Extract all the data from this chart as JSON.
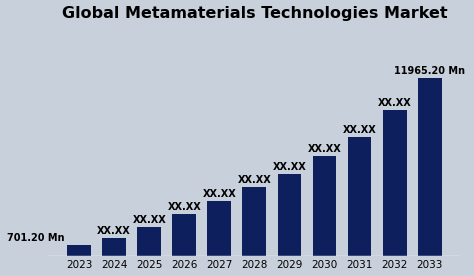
{
  "title": "Global Metamaterials Technologies Market",
  "categories": [
    "2023",
    "2024",
    "2025",
    "2026",
    "2027",
    "2028",
    "2029",
    "2030",
    "2031",
    "2032",
    "2033"
  ],
  "values": [
    701.2,
    1200,
    1900,
    2800,
    3700,
    4600,
    5500,
    6700,
    8000,
    9800,
    11965.2
  ],
  "bar_color": "#0d1f5c",
  "background_color": "#c8d0dc",
  "title_color": "#000000",
  "label_first": "701.20 Mn",
  "label_last": "11965.20 Mn",
  "label_middle": "XX.XX",
  "title_fontsize": 11.5,
  "label_fontsize": 7.0,
  "tick_fontsize": 7.5
}
